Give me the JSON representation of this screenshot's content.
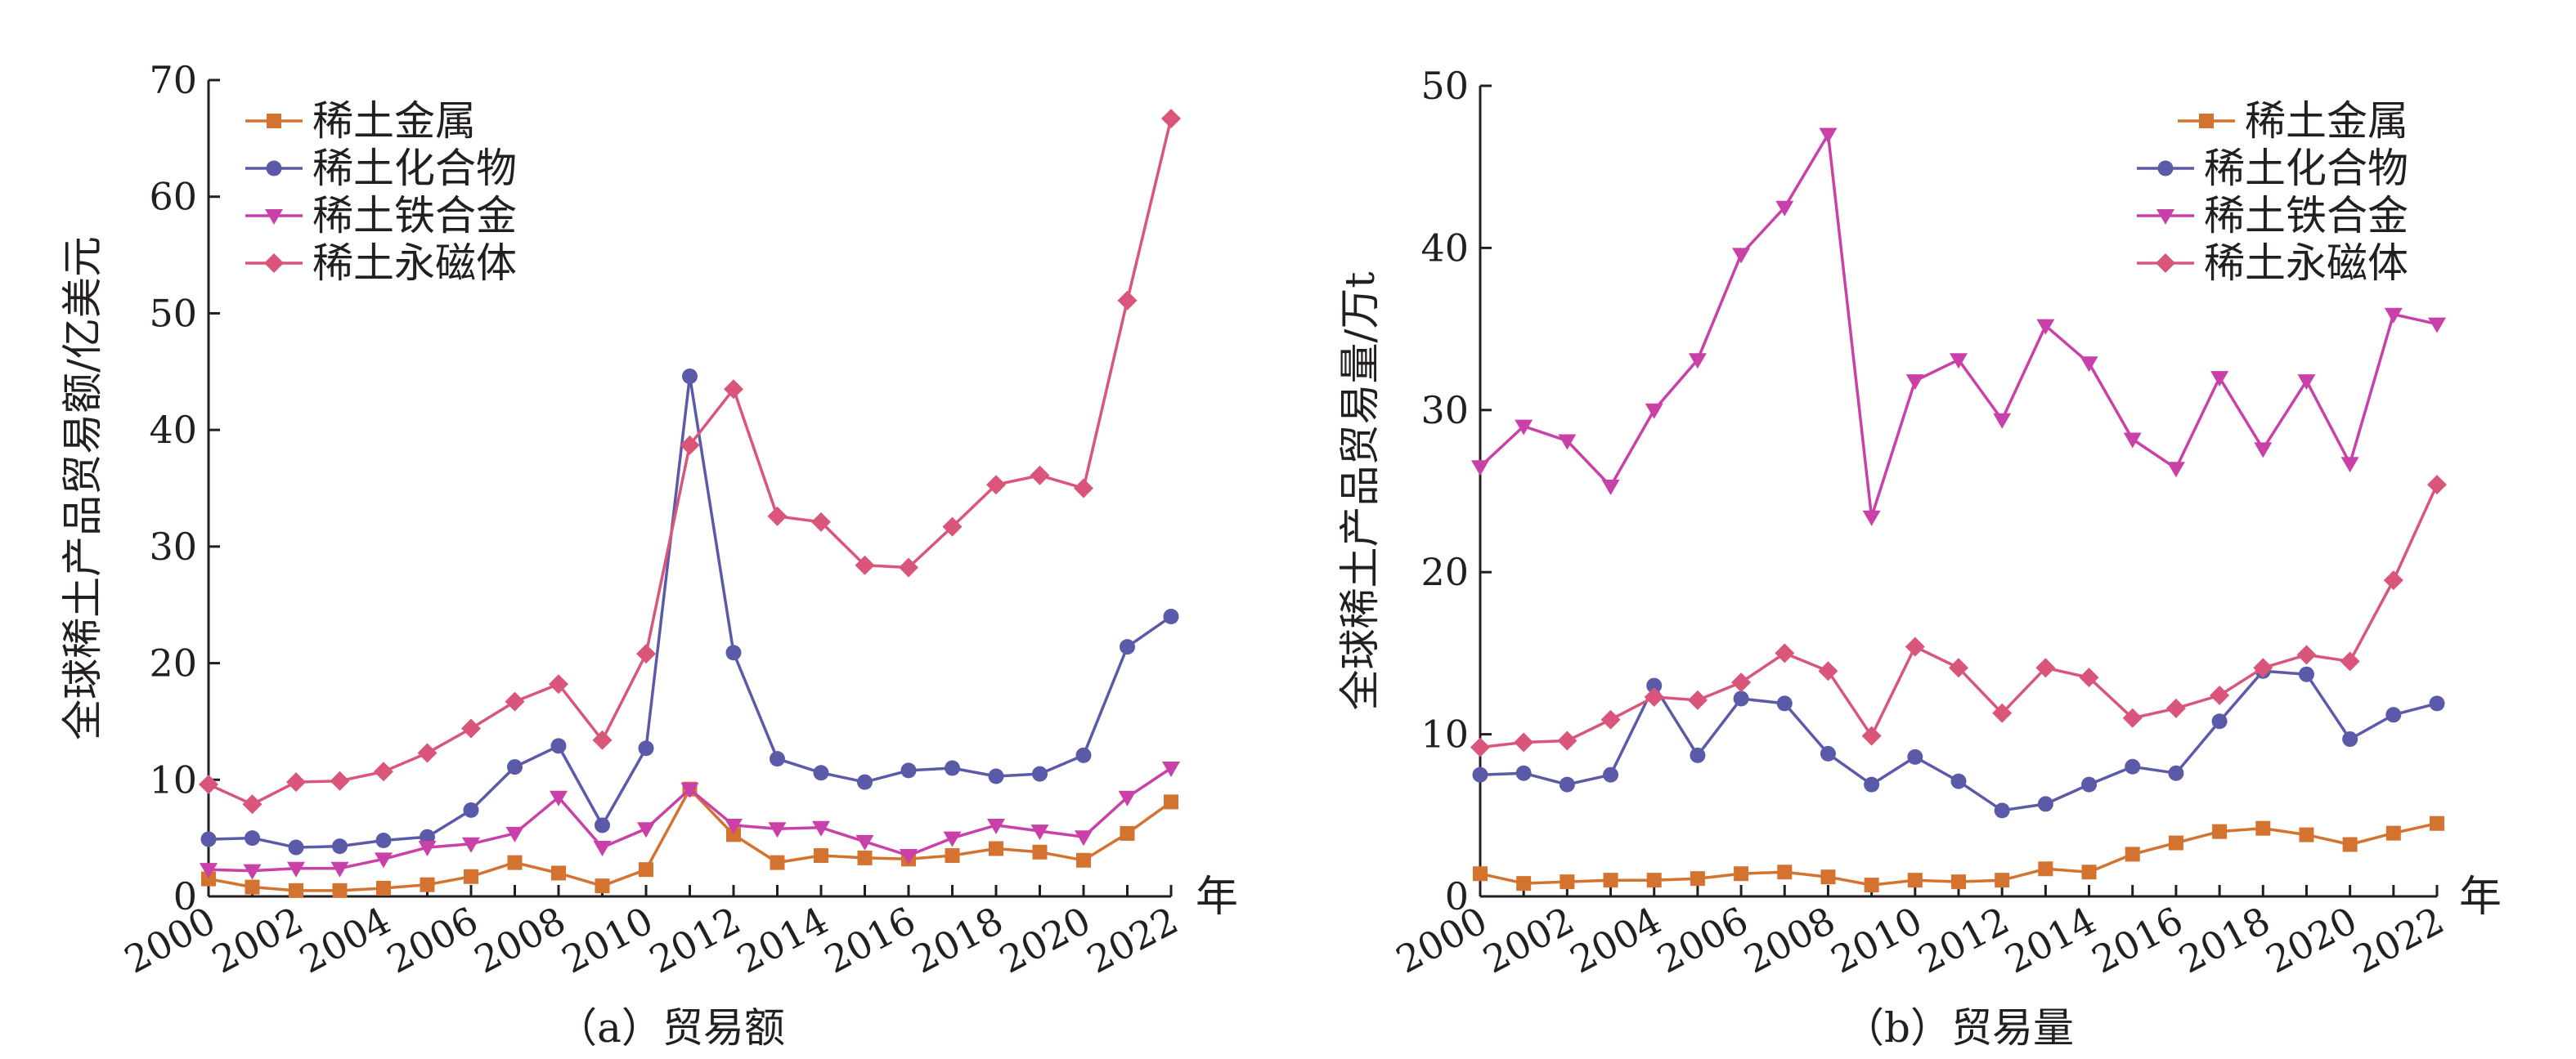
{
  "charts": [
    {
      "type": "line",
      "caption": "（a）贸易额",
      "ylabel": "全球稀土产品贸易额/亿美元",
      "x_unit": "年",
      "ylim": [
        0,
        70
      ],
      "yticks": [
        0,
        10,
        20,
        30,
        40,
        50,
        60,
        70
      ],
      "legend_position": "top-left",
      "x": [
        2000,
        2001,
        2002,
        2003,
        2004,
        2005,
        2006,
        2007,
        2008,
        2009,
        2010,
        2011,
        2012,
        2013,
        2014,
        2015,
        2016,
        2017,
        2018,
        2019,
        2020,
        2021,
        2022
      ],
      "xtick_labels": [
        "2000",
        "2002",
        "2004",
        "2006",
        "2008",
        "2010",
        "2012",
        "2014",
        "2016",
        "2018",
        "2020",
        "2022"
      ],
      "series": [
        {
          "name": "稀土金属",
          "color": "#d4722f",
          "marker": "square",
          "values": [
            1.5,
            0.8,
            0.5,
            0.5,
            0.7,
            1.0,
            1.7,
            2.9,
            2.0,
            0.9,
            2.3,
            9.2,
            5.3,
            2.9,
            3.5,
            3.3,
            3.2,
            3.5,
            4.1,
            3.8,
            3.1,
            5.4,
            8.1
          ]
        },
        {
          "name": "稀土化合物",
          "color": "#5b5aa8",
          "marker": "circle",
          "values": [
            4.9,
            5.0,
            4.2,
            4.3,
            4.8,
            5.1,
            7.4,
            11.1,
            12.9,
            6.1,
            12.7,
            44.6,
            20.9,
            11.8,
            10.6,
            9.8,
            10.8,
            11.0,
            10.3,
            10.5,
            12.1,
            21.4,
            24.0
          ]
        },
        {
          "name": "稀土铁合金",
          "color": "#c940a9",
          "marker": "triangle-down",
          "values": [
            2.3,
            2.2,
            2.4,
            2.4,
            3.2,
            4.2,
            4.5,
            5.4,
            8.5,
            4.2,
            5.8,
            9.2,
            6.1,
            5.8,
            5.9,
            4.7,
            3.5,
            5.0,
            6.1,
            5.6,
            5.1,
            8.5,
            11.0
          ]
        },
        {
          "name": "稀土永磁体",
          "color": "#d9557a",
          "marker": "diamond",
          "values": [
            9.6,
            7.9,
            9.8,
            9.9,
            10.7,
            12.3,
            14.4,
            16.7,
            18.2,
            13.4,
            20.8,
            38.7,
            43.5,
            32.6,
            32.1,
            28.4,
            28.2,
            31.7,
            35.3,
            36.1,
            35.0,
            51.1,
            66.7
          ]
        }
      ]
    },
    {
      "type": "line",
      "caption": "（b）贸易量",
      "ylabel": "全球稀土产品贸易量/万t",
      "x_unit": "年",
      "ylim": [
        0,
        50
      ],
      "yticks": [
        0,
        10,
        20,
        30,
        40,
        50
      ],
      "legend_position": "top-right",
      "x": [
        2000,
        2001,
        2002,
        2003,
        2004,
        2005,
        2006,
        2007,
        2008,
        2009,
        2010,
        2011,
        2012,
        2013,
        2014,
        2015,
        2016,
        2017,
        2018,
        2019,
        2020,
        2021,
        2022
      ],
      "xtick_labels": [
        "2000",
        "2002",
        "2004",
        "2006",
        "2008",
        "2010",
        "2012",
        "2014",
        "2016",
        "2018",
        "2020",
        "2022"
      ],
      "series": [
        {
          "name": "稀土金属",
          "color": "#d4722f",
          "marker": "square",
          "values": [
            1.4,
            0.8,
            0.9,
            1.0,
            1.0,
            1.1,
            1.4,
            1.5,
            1.2,
            0.7,
            1.0,
            0.9,
            1.0,
            1.7,
            1.5,
            2.6,
            3.3,
            4.0,
            4.2,
            3.8,
            3.2,
            3.9,
            4.5
          ]
        },
        {
          "name": "稀土化合物",
          "color": "#5b5aa8",
          "marker": "circle",
          "values": [
            7.5,
            7.6,
            6.9,
            7.5,
            13.0,
            8.7,
            12.2,
            11.9,
            8.8,
            6.9,
            8.6,
            7.1,
            5.3,
            5.7,
            6.9,
            8.0,
            7.6,
            10.8,
            13.9,
            13.7,
            9.7,
            11.2,
            11.9
          ]
        },
        {
          "name": "稀土铁合金",
          "color": "#c940a9",
          "marker": "triangle-down",
          "values": [
            26.5,
            29.0,
            28.1,
            25.3,
            30.0,
            33.1,
            39.6,
            42.5,
            47.0,
            23.4,
            31.8,
            33.1,
            29.4,
            35.2,
            32.9,
            28.2,
            26.4,
            32.0,
            27.6,
            31.8,
            26.7,
            35.9,
            35.3
          ]
        },
        {
          "name": "稀土永磁体",
          "color": "#d9557a",
          "marker": "diamond",
          "values": [
            9.2,
            9.5,
            9.6,
            10.9,
            12.3,
            12.1,
            13.2,
            15.0,
            13.9,
            9.9,
            15.4,
            14.1,
            11.3,
            14.1,
            13.5,
            11.0,
            11.6,
            12.4,
            14.1,
            14.9,
            14.5,
            19.5,
            25.4
          ]
        }
      ]
    }
  ]
}
